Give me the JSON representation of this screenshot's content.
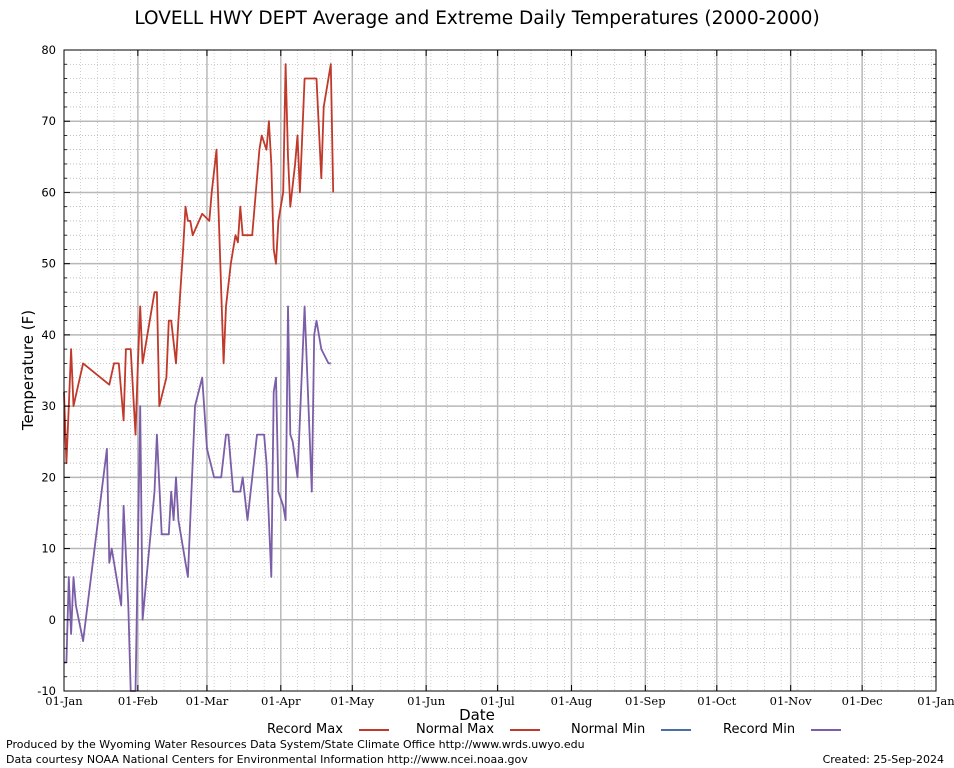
{
  "chart_data": {
    "type": "line",
    "title": "LOVELL HWY DEPT Average and Extreme Daily Temperatures (2000-2000)",
    "xlabel": "Date",
    "ylabel": "Temperature (F)",
    "ylim": [
      -10,
      80
    ],
    "yticks": [
      -10,
      0,
      10,
      20,
      30,
      40,
      50,
      60,
      70,
      80
    ],
    "xlim": [
      "01-Jan",
      "01-Jan"
    ],
    "xtick_labels": [
      "01-Jan",
      "01-Feb",
      "01-Mar",
      "01-Apr",
      "01-May",
      "01-Jun",
      "01-Jul",
      "01-Aug",
      "01-Sep",
      "01-Oct",
      "01-Nov",
      "01-Dec",
      "01-Jan"
    ],
    "grid": true,
    "legend_placement": "bottom",
    "series": [
      {
        "name": "Record Max",
        "color": "#c0392b",
        "points": [
          [
            "01-Jan",
            32
          ],
          [
            "02-Jan",
            22
          ],
          [
            "03-Jan",
            30
          ],
          [
            "04-Jan",
            38
          ],
          [
            "05-Jan",
            30
          ],
          [
            "07-Jan",
            33
          ],
          [
            "09-Jan",
            36
          ],
          [
            "20-Jan",
            33
          ],
          [
            "22-Jan",
            36
          ],
          [
            "24-Jan",
            36
          ],
          [
            "26-Jan",
            28
          ],
          [
            "27-Jan",
            38
          ],
          [
            "29-Jan",
            38
          ],
          [
            "31-Jan",
            26
          ],
          [
            "01-Feb",
            36
          ],
          [
            "02-Feb",
            44
          ],
          [
            "03-Feb",
            36
          ],
          [
            "08-Feb",
            46
          ],
          [
            "09-Feb",
            46
          ],
          [
            "10-Feb",
            30
          ],
          [
            "13-Feb",
            34
          ],
          [
            "14-Feb",
            42
          ],
          [
            "15-Feb",
            42
          ],
          [
            "17-Feb",
            36
          ],
          [
            "18-Feb",
            42
          ],
          [
            "20-Feb",
            52
          ],
          [
            "21-Feb",
            58
          ],
          [
            "22-Feb",
            56
          ],
          [
            "23-Feb",
            56
          ],
          [
            "24-Feb",
            54
          ],
          [
            "28-Feb",
            57
          ],
          [
            "02-Mar",
            56
          ],
          [
            "03-Mar",
            60
          ],
          [
            "05-Mar",
            66
          ],
          [
            "06-Mar",
            56
          ],
          [
            "08-Mar",
            36
          ],
          [
            "09-Mar",
            44
          ],
          [
            "11-Mar",
            50
          ],
          [
            "13-Mar",
            54
          ],
          [
            "14-Mar",
            53
          ],
          [
            "15-Mar",
            58
          ],
          [
            "16-Mar",
            54
          ],
          [
            "17-Mar",
            54
          ],
          [
            "19-Mar",
            54
          ],
          [
            "20-Mar",
            54
          ],
          [
            "23-Mar",
            66
          ],
          [
            "24-Mar",
            68
          ],
          [
            "26-Mar",
            66
          ],
          [
            "27-Mar",
            70
          ],
          [
            "28-Mar",
            64
          ],
          [
            "29-Mar",
            52
          ],
          [
            "30-Mar",
            50
          ],
          [
            "31-Mar",
            56
          ],
          [
            "02-Apr",
            60
          ],
          [
            "03-Apr",
            78
          ],
          [
            "04-Apr",
            65
          ],
          [
            "05-Apr",
            58
          ],
          [
            "07-Apr",
            64
          ],
          [
            "08-Apr",
            68
          ],
          [
            "09-Apr",
            60
          ],
          [
            "11-Apr",
            76
          ],
          [
            "16-Apr",
            76
          ],
          [
            "18-Apr",
            62
          ],
          [
            "19-Apr",
            72
          ],
          [
            "22-Apr",
            78
          ],
          [
            "23-Apr",
            60
          ]
        ]
      },
      {
        "name": "Normal Max",
        "color": "#c0392b",
        "points": []
      },
      {
        "name": "Normal Min",
        "color": "#4a6fa5",
        "points": []
      },
      {
        "name": "Record Min",
        "color": "#7b5ea7",
        "points": [
          [
            "01-Jan",
            -6
          ],
          [
            "02-Jan",
            -6
          ],
          [
            "03-Jan",
            6
          ],
          [
            "04-Jan",
            -2
          ],
          [
            "05-Jan",
            6
          ],
          [
            "06-Jan",
            2
          ],
          [
            "09-Jan",
            -3
          ],
          [
            "19-Jan",
            24
          ],
          [
            "20-Jan",
            8
          ],
          [
            "21-Jan",
            10
          ],
          [
            "25-Jan",
            2
          ],
          [
            "26-Jan",
            16
          ],
          [
            "28-Jan",
            2
          ],
          [
            "29-Jan",
            -10
          ],
          [
            "31-Jan",
            -10
          ],
          [
            "01-Feb",
            10
          ],
          [
            "02-Feb",
            30
          ],
          [
            "03-Feb",
            0
          ],
          [
            "08-Feb",
            18
          ],
          [
            "09-Feb",
            26
          ],
          [
            "11-Feb",
            12
          ],
          [
            "14-Feb",
            12
          ],
          [
            "15-Feb",
            18
          ],
          [
            "16-Feb",
            14
          ],
          [
            "17-Feb",
            20
          ],
          [
            "18-Feb",
            14
          ],
          [
            "22-Feb",
            6
          ],
          [
            "25-Feb",
            30
          ],
          [
            "28-Feb",
            34
          ],
          [
            "01-Mar",
            24
          ],
          [
            "04-Mar",
            20
          ],
          [
            "07-Mar",
            20
          ],
          [
            "09-Mar",
            26
          ],
          [
            "10-Mar",
            26
          ],
          [
            "12-Mar",
            18
          ],
          [
            "15-Mar",
            18
          ],
          [
            "16-Mar",
            20
          ],
          [
            "18-Mar",
            14
          ],
          [
            "22-Mar",
            26
          ],
          [
            "25-Mar",
            26
          ],
          [
            "26-Mar",
            22
          ],
          [
            "28-Mar",
            6
          ],
          [
            "29-Mar",
            32
          ],
          [
            "30-Mar",
            34
          ],
          [
            "31-Mar",
            18
          ],
          [
            "02-Apr",
            16
          ],
          [
            "03-Apr",
            14
          ],
          [
            "04-Apr",
            44
          ],
          [
            "05-Apr",
            26
          ],
          [
            "06-Apr",
            25
          ],
          [
            "08-Apr",
            20
          ],
          [
            "11-Apr",
            44
          ],
          [
            "14-Apr",
            18
          ],
          [
            "15-Apr",
            40
          ],
          [
            "16-Apr",
            42
          ],
          [
            "18-Apr",
            38
          ],
          [
            "21-Apr",
            36
          ],
          [
            "22-Apr",
            36
          ]
        ]
      }
    ]
  },
  "footer": {
    "produced_by": "Produced by the Wyoming Water Resources Data System/State Climate Office http://www.wrds.uwyo.edu",
    "data_courtesy": "Data courtesy NOAA National Centers for Environmental Information http://www.ncei.noaa.gov",
    "created": "Created:  25-Sep-2024"
  }
}
